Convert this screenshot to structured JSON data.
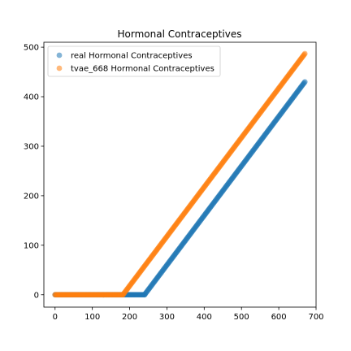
{
  "chart_data": {
    "type": "scatter",
    "title": "Hormonal Contraceptives",
    "xlabel": "",
    "ylabel": "",
    "xlim": [
      -30,
      700
    ],
    "ylim": [
      -25,
      510
    ],
    "xticks": [
      0,
      100,
      200,
      300,
      400,
      500,
      600,
      700
    ],
    "yticks": [
      0,
      100,
      200,
      300,
      400,
      500
    ],
    "grid": false,
    "legend_position": "top-left",
    "series": [
      {
        "name": "real Hormonal Contraceptives",
        "color": "#1f77b4",
        "segments": [
          {
            "x_start": 0,
            "x_end": 240,
            "y_start": 0,
            "y_end": 0
          },
          {
            "x_start": 240,
            "x_end": 670,
            "y_start": 0,
            "y_end": 430
          }
        ]
      },
      {
        "name": "tvae_668 Hormonal Contraceptives",
        "color": "#ff7f0e",
        "segments": [
          {
            "x_start": 0,
            "x_end": 182,
            "y_start": 0,
            "y_end": 0
          },
          {
            "x_start": 182,
            "x_end": 670,
            "y_start": 0,
            "y_end": 487
          }
        ]
      }
    ]
  }
}
